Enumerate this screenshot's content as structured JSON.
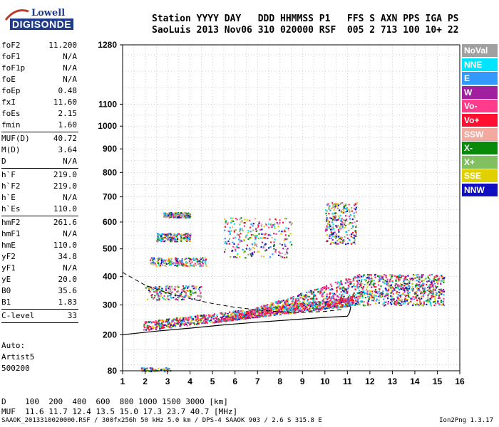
{
  "logo": {
    "line1": "Lowell",
    "line2": "DIGISONDE"
  },
  "header": {
    "line1": "Station YYYY DAY   DDD HHMMSS P1   FFS S AXN PPS IGA PS",
    "line2": "SaoLuis 2013 Nov06 310 020000 RSF  005 2 713 100 10+ 22"
  },
  "params": [
    {
      "name": "foF2",
      "value": "11.200"
    },
    {
      "name": "foF1",
      "value": "N/A"
    },
    {
      "name": "foF1p",
      "value": "N/A"
    },
    {
      "name": "foE",
      "value": "N/A"
    },
    {
      "name": "foEp",
      "value": "0.48"
    },
    {
      "name": "fxI",
      "value": "11.60"
    },
    {
      "name": "foEs",
      "value": "2.15"
    },
    {
      "name": "fmin",
      "value": "1.60"
    },
    {
      "sep": true
    },
    {
      "name": "MUF(D)",
      "value": "40.72"
    },
    {
      "name": "M(D)",
      "value": "3.64"
    },
    {
      "name": "D",
      "value": "N/A"
    },
    {
      "sep": true
    },
    {
      "name": "h`F",
      "value": "219.0"
    },
    {
      "name": "h`F2",
      "value": "219.0"
    },
    {
      "name": "h`E",
      "value": "N/A"
    },
    {
      "name": "h`Es",
      "value": "110.0"
    },
    {
      "sep": true
    },
    {
      "name": "hmF2",
      "value": "261.6"
    },
    {
      "name": "hmF1",
      "value": "N/A"
    },
    {
      "name": "hmE",
      "value": "110.0"
    },
    {
      "name": "yF2",
      "value": "34.8"
    },
    {
      "name": "yF1",
      "value": "N/A"
    },
    {
      "name": "yE",
      "value": "20.0"
    },
    {
      "name": "B0",
      "value": "35.6"
    },
    {
      "name": "B1",
      "value": "1.83"
    },
    {
      "sep": true
    },
    {
      "name": "C-level",
      "value": "33"
    },
    {
      "sep": true
    }
  ],
  "auto": [
    "Auto:",
    "Artist5",
    "500200"
  ],
  "legend": [
    {
      "label": "NoVal",
      "color": "#a0a0a0"
    },
    {
      "label": "NNE",
      "color": "#00e5ff"
    },
    {
      "label": "E",
      "color": "#3399ff"
    },
    {
      "label": "W",
      "color": "#a020a0"
    },
    {
      "label": "Vo-",
      "color": "#ff3c8c"
    },
    {
      "label": "Vo+",
      "color": "#ff1030"
    },
    {
      "label": "SSW",
      "color": "#f2aaa0"
    },
    {
      "label": "X-",
      "color": "#0a8a0a"
    },
    {
      "label": "X+",
      "color": "#80c060"
    },
    {
      "label": "SSE",
      "color": "#e0d000"
    },
    {
      "label": "NNW",
      "color": "#1010c0"
    }
  ],
  "bottom": {
    "line1": "D    100  200  400  600  800 1000 1500 3000 [km]",
    "line2": "MUF  11.6 11.7 12.4 13.5 15.0 17.3 23.7 40.7 [MHz]"
  },
  "footer": {
    "left": "SAAOK_2013310020000.RSF / 300fx256h 50 kHz 5.0 km / DPS-4 SAAOK 903 / 2.6 S 315.8 E",
    "right": "Ion2Png 1.3.17"
  },
  "chart_data": {
    "type": "scatter",
    "xlim": [
      1,
      16
    ],
    "ylim": [
      80,
      1280
    ],
    "x_ticks": [
      1,
      2,
      3,
      4,
      5,
      6,
      7,
      8,
      9,
      10,
      11,
      12,
      13,
      14,
      15,
      16
    ],
    "y_ticks": [
      80,
      200,
      300,
      400,
      500,
      600,
      700,
      800,
      900,
      1000,
      1100,
      1280
    ],
    "y_scale": "nonlinear",
    "y_scale_anchors": [
      [
        80,
        0
      ],
      [
        200,
        0.1107
      ],
      [
        300,
        0.2021
      ],
      [
        400,
        0.2889
      ],
      [
        500,
        0.3741
      ],
      [
        600,
        0.4564
      ],
      [
        700,
        0.5337
      ],
      [
        800,
        0.6085
      ],
      [
        900,
        0.6808
      ],
      [
        1000,
        0.7506
      ],
      [
        1100,
        0.8179
      ],
      [
        1280,
        1.0
      ]
    ],
    "grid": true,
    "dashed_curve": [
      [
        1.0,
        415
      ],
      [
        2.0,
        370
      ],
      [
        3.0,
        342
      ],
      [
        4.0,
        322
      ],
      [
        5.0,
        305
      ],
      [
        6.0,
        292
      ],
      [
        7.0,
        283
      ],
      [
        8.0,
        277
      ],
      [
        9.0,
        275
      ],
      [
        10.0,
        278
      ],
      [
        10.8,
        285
      ]
    ],
    "solid_curve": [
      [
        1.0,
        200
      ],
      [
        2.5,
        212
      ],
      [
        4.0,
        222
      ],
      [
        5.5,
        233
      ],
      [
        7.0,
        242
      ],
      [
        8.5,
        250
      ],
      [
        10.0,
        258
      ],
      [
        11.0,
        262
      ],
      [
        11.1,
        275
      ],
      [
        11.15,
        295
      ]
    ],
    "trace_clusters": [
      {
        "x0": 1.9,
        "x1": 11.4,
        "y0": 215,
        "y1": 260,
        "kind": "o-trace"
      },
      {
        "x0": 5.0,
        "x1": 11.4,
        "y0": 260,
        "y1": 360,
        "kind": "o-trace"
      },
      {
        "x0": 2.0,
        "x1": 4.5,
        "y0": 320,
        "y1": 370,
        "kind": "band"
      },
      {
        "x0": 2.2,
        "x1": 4.7,
        "y0": 440,
        "y1": 470,
        "kind": "band"
      },
      {
        "x0": 2.5,
        "x1": 4.0,
        "y0": 530,
        "y1": 560,
        "kind": "band"
      },
      {
        "x0": 2.8,
        "x1": 4.0,
        "y0": 620,
        "y1": 640,
        "kind": "band"
      },
      {
        "x0": 5.5,
        "x1": 8.5,
        "y0": 470,
        "y1": 620,
        "kind": "multi"
      },
      {
        "x0": 10.0,
        "x1": 11.4,
        "y0": 520,
        "y1": 680,
        "kind": "multi"
      },
      {
        "x0": 11.4,
        "x1": 15.3,
        "y0": 300,
        "y1": 410,
        "kind": "spread"
      },
      {
        "x0": 1.8,
        "x1": 3.1,
        "y0": 80,
        "y1": 92,
        "kind": "es"
      }
    ]
  }
}
